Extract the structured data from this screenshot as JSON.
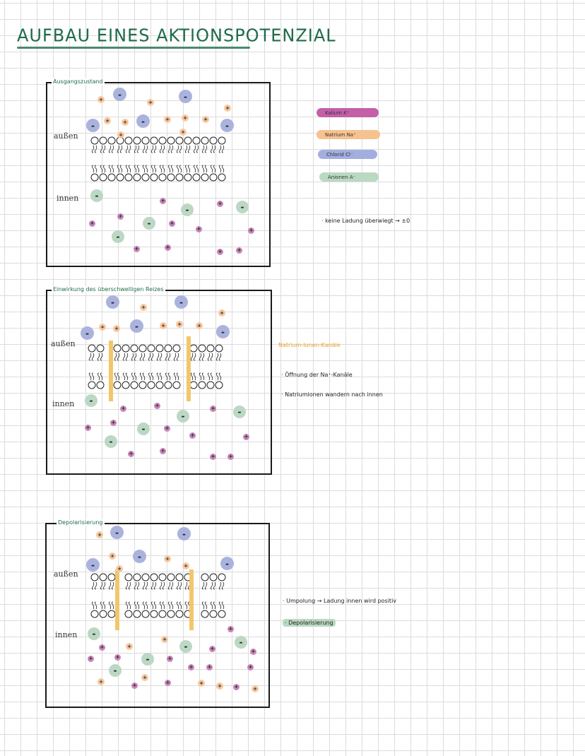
{
  "title": "AUFBAU EINES AKTIONSPOTENZIAL",
  "panels": [
    {
      "label": "Ausgangszustand",
      "outside": "außen",
      "inside": "innen"
    },
    {
      "label": "Einwirkung des überschwelligen Reizes",
      "outside": "außen",
      "inside": "innen"
    },
    {
      "label": "Depolarisierung",
      "outside": "außen",
      "inside": "innen"
    }
  ],
  "legend": [
    {
      "label": "Kalium K⁺",
      "color": "#c45fa8"
    },
    {
      "label": "Natrium Na⁺",
      "color": "#f6c28f"
    },
    {
      "label": "Chlorid Cl⁻",
      "color": "#a3aee0"
    },
    {
      "label": "Anionen A⁻",
      "color": "#bad9c2"
    }
  ],
  "notes": {
    "n1": "· keine Ladung überwiegt → ±0",
    "channel_title": "Natrium-Ionen-Kanäle",
    "n2a": "· Öffnung der Na⁺-Kanäle",
    "n2b": "· Natriumionen wandern nach innen",
    "n3a": "· Umpolung → Ladung innen wird positiv",
    "n3b": "· Depolarisierung"
  }
}
